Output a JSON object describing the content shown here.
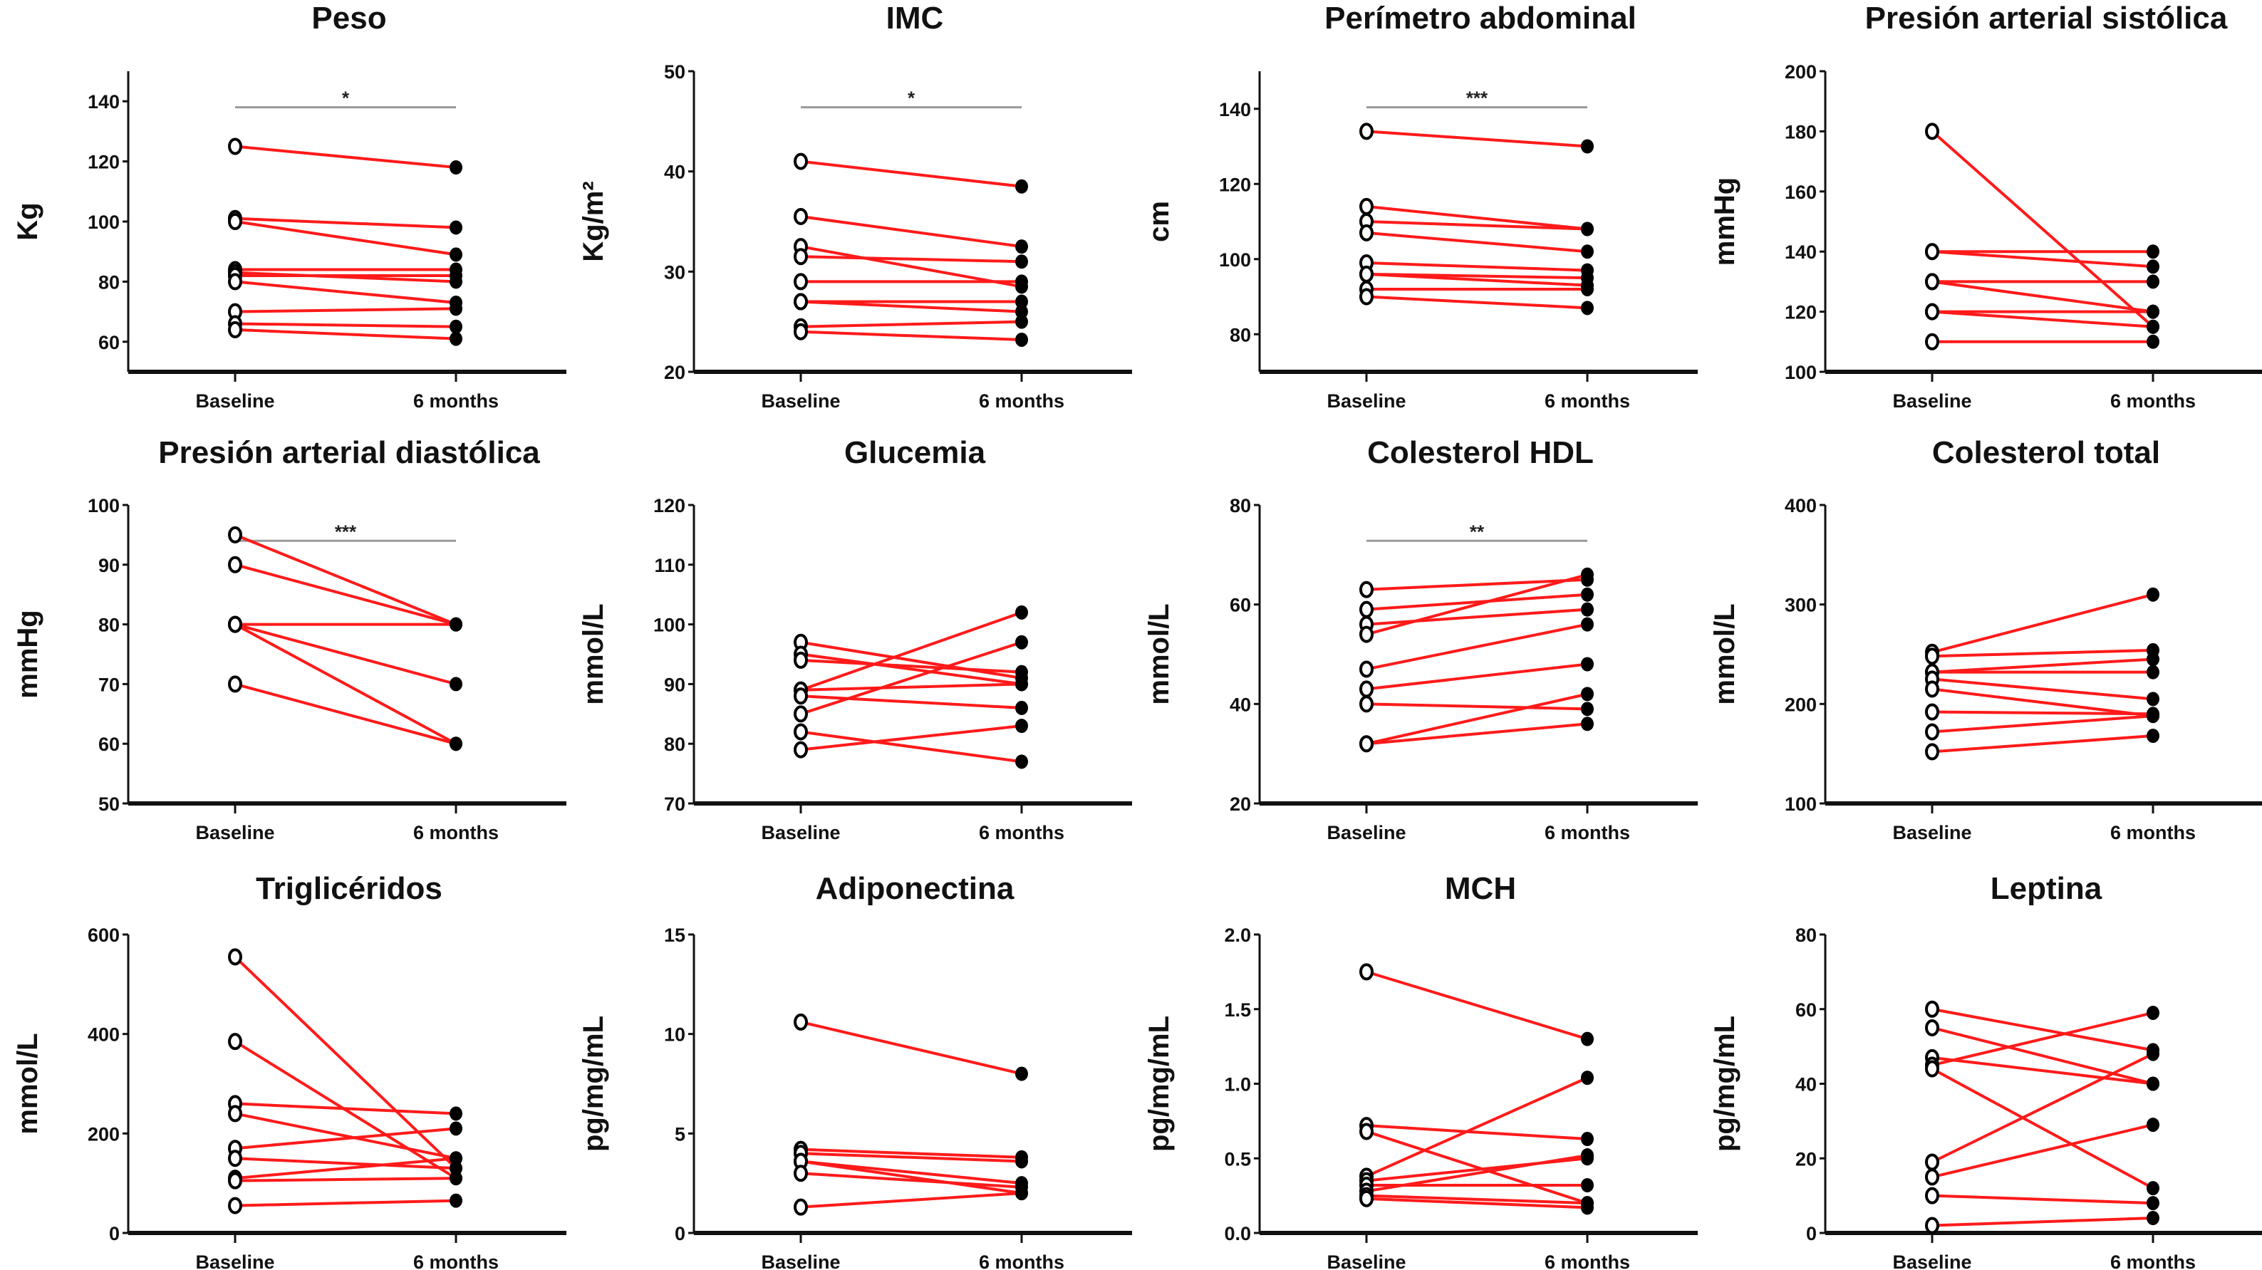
{
  "chart_data": [
    {
      "type": "line",
      "title": "Peso",
      "ylabel": "Kg",
      "categories": [
        "Baseline",
        "6 months"
      ],
      "ylim": [
        50,
        150
      ],
      "ticks": [
        "60",
        "80",
        "100",
        "120",
        "140"
      ],
      "significance": "*",
      "pairs": [
        [
          125,
          118
        ],
        [
          101,
          98
        ],
        [
          100,
          89
        ],
        [
          84,
          84
        ],
        [
          83,
          80
        ],
        [
          82,
          82
        ],
        [
          80,
          73
        ],
        [
          70,
          71
        ],
        [
          66,
          65
        ],
        [
          64,
          61
        ]
      ]
    },
    {
      "type": "line",
      "title": "IMC",
      "ylabel": "Kg/m²",
      "categories": [
        "Baseline",
        "6 months"
      ],
      "ylim": [
        20,
        50
      ],
      "ticks": [
        "20",
        "30",
        "40",
        "50"
      ],
      "significance": "*",
      "pairs": [
        [
          41,
          38.5
        ],
        [
          35.5,
          32.5
        ],
        [
          32.5,
          28.5
        ],
        [
          31.5,
          31
        ],
        [
          29,
          29
        ],
        [
          27,
          27
        ],
        [
          27,
          26
        ],
        [
          24.5,
          25
        ],
        [
          24,
          23.2
        ]
      ]
    },
    {
      "type": "line",
      "title": "Perímetro abdominal",
      "ylabel": "cm",
      "categories": [
        "Baseline",
        "6 months"
      ],
      "ylim": [
        70,
        150
      ],
      "ticks": [
        "80",
        "100",
        "120",
        "140"
      ],
      "significance": "***",
      "pairs": [
        [
          134,
          130
        ],
        [
          114,
          108
        ],
        [
          110,
          108
        ],
        [
          107,
          102
        ],
        [
          99,
          97
        ],
        [
          96,
          95
        ],
        [
          96,
          93
        ],
        [
          92,
          92
        ],
        [
          90,
          87
        ]
      ]
    },
    {
      "type": "line",
      "title": "Presión arterial sistólica",
      "ylabel": "mmHg",
      "categories": [
        "Baseline",
        "6 months"
      ],
      "ylim": [
        100,
        200
      ],
      "ticks": [
        "100",
        "120",
        "140",
        "160",
        "180",
        "200"
      ],
      "significance": "",
      "pairs": [
        [
          180,
          115
        ],
        [
          140,
          140
        ],
        [
          140,
          135
        ],
        [
          130,
          130
        ],
        [
          130,
          120
        ],
        [
          120,
          120
        ],
        [
          120,
          115
        ],
        [
          110,
          110
        ]
      ]
    },
    {
      "type": "line",
      "title": "Presión arterial diastólica",
      "ylabel": "mmHg",
      "categories": [
        "Baseline",
        "6 months"
      ],
      "ylim": [
        50,
        100
      ],
      "ticks": [
        "50",
        "60",
        "70",
        "80",
        "90",
        "100"
      ],
      "significance": "***",
      "pairs": [
        [
          95,
          80
        ],
        [
          90,
          80
        ],
        [
          80,
          80
        ],
        [
          80,
          70
        ],
        [
          80,
          60
        ],
        [
          70,
          60
        ]
      ]
    },
    {
      "type": "line",
      "title": "Glucemia",
      "ylabel": "mmol/L",
      "categories": [
        "Baseline",
        "6 months"
      ],
      "ylim": [
        70,
        120
      ],
      "ticks": [
        "70",
        "80",
        "90",
        "100",
        "110",
        "120"
      ],
      "significance": "",
      "pairs": [
        [
          97,
          91
        ],
        [
          95,
          90
        ],
        [
          94,
          92
        ],
        [
          89,
          102
        ],
        [
          85,
          97
        ],
        [
          89,
          90
        ],
        [
          88,
          86
        ],
        [
          82,
          77
        ],
        [
          79,
          83
        ]
      ]
    },
    {
      "type": "line",
      "title": "Colesterol HDL",
      "ylabel": "mmol/L",
      "categories": [
        "Baseline",
        "6 months"
      ],
      "ylim": [
        20,
        80
      ],
      "ticks": [
        "20",
        "40",
        "60",
        "80"
      ],
      "significance": "**",
      "pairs": [
        [
          63,
          65
        ],
        [
          59,
          62
        ],
        [
          56,
          59
        ],
        [
          54,
          66
        ],
        [
          47,
          56
        ],
        [
          43,
          48
        ],
        [
          40,
          39
        ],
        [
          32,
          42
        ],
        [
          32,
          36
        ]
      ]
    },
    {
      "type": "line",
      "title": "Colesterol total",
      "ylabel": "mmol/L",
      "categories": [
        "Baseline",
        "6 months"
      ],
      "ylim": [
        100,
        400
      ],
      "ticks": [
        "100",
        "200",
        "300",
        "400"
      ],
      "significance": "",
      "pairs": [
        [
          252,
          310
        ],
        [
          248,
          254
        ],
        [
          232,
          245
        ],
        [
          232,
          232
        ],
        [
          225,
          205
        ],
        [
          215,
          188
        ],
        [
          192,
          190
        ],
        [
          172,
          188
        ],
        [
          152,
          168
        ]
      ]
    },
    {
      "type": "line",
      "title": "Triglicéridos",
      "ylabel": "mmol/L",
      "categories": [
        "Baseline",
        "6 months"
      ],
      "ylim": [
        0,
        600
      ],
      "ticks": [
        "0",
        "200",
        "400",
        "600"
      ],
      "significance": "",
      "pairs": [
        [
          555,
          130
        ],
        [
          385,
          110
        ],
        [
          260,
          240
        ],
        [
          240,
          150
        ],
        [
          170,
          210
        ],
        [
          150,
          130
        ],
        [
          110,
          150
        ],
        [
          105,
          110
        ],
        [
          55,
          65
        ]
      ]
    },
    {
      "type": "line",
      "title": "Adiponectina",
      "ylabel": "pg/mg/mL",
      "categories": [
        "Baseline",
        "6 months"
      ],
      "ylim": [
        0,
        15
      ],
      "ticks": [
        "0",
        "5",
        "10",
        "15"
      ],
      "significance": "",
      "pairs": [
        [
          10.6,
          8
        ],
        [
          4.2,
          3.8
        ],
        [
          4,
          3.6
        ],
        [
          3.6,
          2.5
        ],
        [
          3.6,
          2
        ],
        [
          3,
          2.3
        ],
        [
          1.3,
          2
        ]
      ]
    },
    {
      "type": "line",
      "title": "MCH",
      "ylabel": "pg/mg/mL",
      "categories": [
        "Baseline",
        "6 months"
      ],
      "ylim": [
        0,
        2
      ],
      "ticks": [
        "0.0",
        "0.5",
        "1.0",
        "1.5",
        "2.0"
      ],
      "significance": "",
      "pairs": [
        [
          1.75,
          1.3
        ],
        [
          0.72,
          0.63
        ],
        [
          0.68,
          0.2
        ],
        [
          0.38,
          1.04
        ],
        [
          0.35,
          0.5
        ],
        [
          0.32,
          0.32
        ],
        [
          0.28,
          0.52
        ],
        [
          0.25,
          0.2
        ],
        [
          0.23,
          0.17
        ]
      ]
    },
    {
      "type": "line",
      "title": "Leptina",
      "ylabel": "pg/mg/mL",
      "categories": [
        "Baseline",
        "6 months"
      ],
      "ylim": [
        0,
        80
      ],
      "ticks": [
        "0",
        "20",
        "40",
        "60",
        "80"
      ],
      "significance": "",
      "pairs": [
        [
          60,
          49
        ],
        [
          55,
          40
        ],
        [
          47,
          40
        ],
        [
          45,
          59
        ],
        [
          44,
          12
        ],
        [
          19,
          48
        ],
        [
          15,
          29
        ],
        [
          10,
          8
        ],
        [
          2,
          4
        ]
      ]
    }
  ],
  "colors": {
    "line": "#ff1a1a",
    "baseline_marker": "#ffffff",
    "followup_marker": "#000000",
    "axis": "#111111",
    "significance_bar": "#999999"
  }
}
